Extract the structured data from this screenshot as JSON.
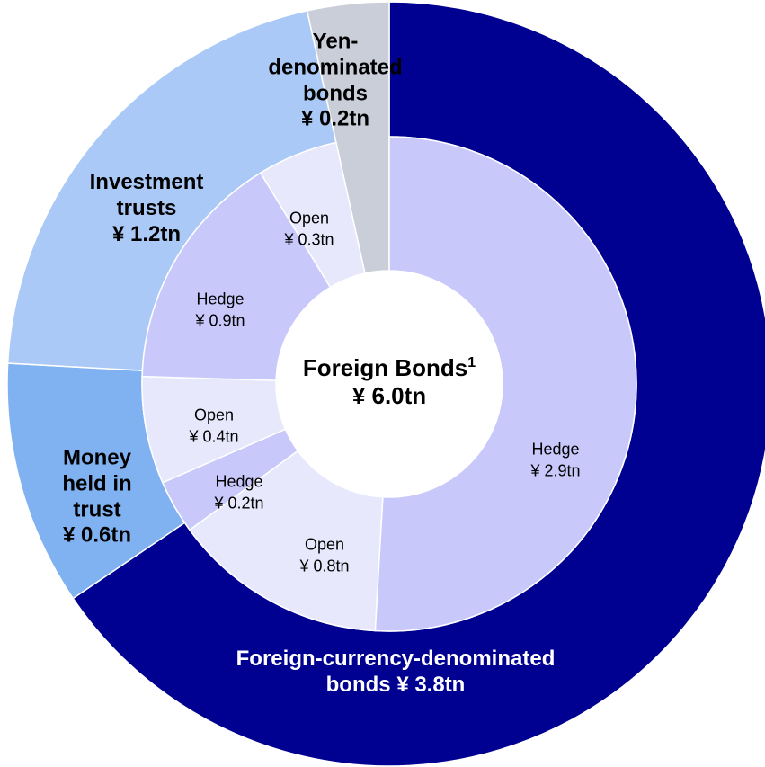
{
  "chart_data": {
    "type": "sunburst",
    "center": {
      "label": "Foreign Bonds",
      "footnote": "1",
      "value": 6.0,
      "value_label": "¥ 6.0tn"
    },
    "rings": [
      {
        "categories": [
          "Foreign-currency-denominated bonds",
          "Money held in trust",
          "Investment trusts",
          "Yen-denominated bonds"
        ],
        "values": [
          3.8,
          0.6,
          1.2,
          0.2
        ],
        "value_labels": [
          "¥ 3.8tn",
          "¥ 0.6tn",
          "¥ 1.2tn",
          "¥ 0.2tn"
        ],
        "colors": [
          "#000091",
          "#80b2f2",
          "#aac9f6",
          "#c9ced9"
        ]
      },
      {
        "categories": [
          "Hedge",
          "Open",
          "Hedge",
          "Open",
          "Hedge",
          "Open"
        ],
        "values": [
          2.9,
          0.8,
          0.2,
          0.4,
          0.9,
          0.3
        ],
        "value_labels": [
          "¥ 2.9tn",
          "¥ 0.8tn",
          "¥ 0.2tn",
          "¥ 0.4tn",
          "¥ 0.9tn",
          "¥ 0.3tn"
        ],
        "colors": [
          "#c8c8fb",
          "#e8e8fd",
          "#c8c8fb",
          "#e8e8fd",
          "#c8c8fb",
          "#e8e8fd"
        ]
      }
    ]
  }
}
